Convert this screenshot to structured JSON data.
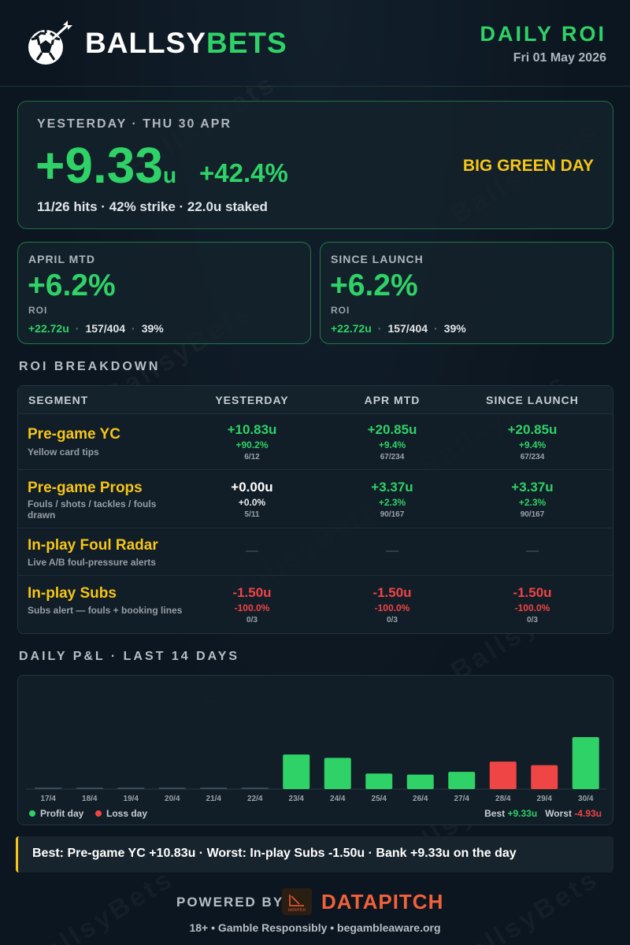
{
  "header": {
    "brand_white": "BALLSY",
    "brand_green": "BETS",
    "title": "DAILY ROI",
    "date": "Fri 01 May 2026",
    "logo_icon": "soccer-ball-dart-icon"
  },
  "watermark": "BallsyBets",
  "hero": {
    "label": "YESTERDAY · THU 30 APR",
    "units": "+9.33",
    "unit_suffix": "u",
    "percent": "+42.4%",
    "sub": "11/26 hits · 42% strike · 22.0u staked",
    "tag": "BIG GREEN DAY"
  },
  "mtd": {
    "label": "APRIL MTD",
    "value": "+6.2%",
    "roi_label": "ROI",
    "units": "+22.72u",
    "record": "157/404",
    "strike": "39%"
  },
  "launch": {
    "label": "SINCE LAUNCH",
    "value": "+6.2%",
    "roi_label": "ROI",
    "units": "+22.72u",
    "record": "157/404",
    "strike": "39%"
  },
  "breakdown": {
    "title": "ROI BREAKDOWN",
    "headers": [
      "SEGMENT",
      "YESTERDAY",
      "APR MTD",
      "SINCE LAUNCH"
    ],
    "rows": [
      {
        "name": "Pre-game YC",
        "desc": "Yellow card tips",
        "cells": [
          {
            "u": "+10.83u",
            "p": "+90.2%",
            "h": "6/12"
          },
          {
            "u": "+20.85u",
            "p": "+9.4%",
            "h": "67/234"
          },
          {
            "u": "+20.85u",
            "p": "+9.4%",
            "h": "67/234"
          }
        ]
      },
      {
        "name": "Pre-game Props",
        "desc": "Fouls / shots / tackles / fouls drawn",
        "cells": [
          {
            "u": "+0.00u",
            "p": "+0.0%",
            "h": "5/11"
          },
          {
            "u": "+3.37u",
            "p": "+2.3%",
            "h": "90/167"
          },
          {
            "u": "+3.37u",
            "p": "+2.3%",
            "h": "90/167"
          }
        ]
      },
      {
        "name": "In-play Foul Radar",
        "desc": "Live A/B foul-pressure alerts",
        "dash": "—"
      },
      {
        "name": "In-play Subs",
        "desc": "Subs alert — fouls + booking lines",
        "cells": [
          {
            "u": "-1.50u",
            "p": "-100.0%",
            "h": "0/3"
          },
          {
            "u": "-1.50u",
            "p": "-100.0%",
            "h": "0/3"
          },
          {
            "u": "-1.50u",
            "p": "-100.0%",
            "h": "0/3"
          }
        ]
      }
    ]
  },
  "pnl": {
    "title": "DAILY P&L · LAST 14 DAYS",
    "profit_label": "Profit day",
    "loss_label": "Loss day",
    "best_label": "Best",
    "best_value": "+9.33u",
    "worst_label": "Worst",
    "worst_value": "-4.93u",
    "colors": {
      "profit": "#2fd267",
      "loss": "#ef4545"
    }
  },
  "chart_data": {
    "type": "bar",
    "categories": [
      "17/4",
      "18/4",
      "19/4",
      "20/4",
      "21/4",
      "22/4",
      "23/4",
      "24/4",
      "25/4",
      "26/4",
      "27/4",
      "28/4",
      "29/4",
      "30/4"
    ],
    "values": [
      0,
      0,
      0,
      0,
      0,
      0,
      6.2,
      5.6,
      2.8,
      2.6,
      3.1,
      -4.93,
      -4.3,
      9.33
    ]
  },
  "summary": "Best: Pre-game YC +10.83u · Worst: In-play Subs -1.50u · Bank +9.33u on the day",
  "powered": {
    "label": "POWERED BY",
    "name": "DATAPITCH",
    "logo_text": "DATAPITCH"
  },
  "footer": "18+  •  Gamble Responsibly  •  begambleaware.org"
}
